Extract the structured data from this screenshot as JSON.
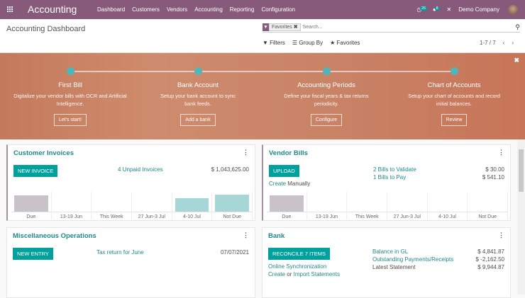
{
  "nav": {
    "brand": "Accounting",
    "menu": [
      "Dashboard",
      "Customers",
      "Vendors",
      "Accounting",
      "Reporting",
      "Configuration"
    ],
    "activity_count": "26",
    "message_count": "8",
    "company": "Demo Company"
  },
  "control": {
    "title": "Accounting Dashboard",
    "facet": "Favorites",
    "search_placeholder": "Search...",
    "filters": "Filters",
    "group_by": "Group By",
    "favorites": "Favorites",
    "pager": "1-7 / 7"
  },
  "banner": {
    "steps": [
      {
        "title": "First Bill",
        "desc": "Digitalize your vendor bills with OCR and Artificial Intelligence.",
        "button": "Let's start!"
      },
      {
        "title": "Bank Account",
        "desc": "Setup your bank account to sync bank feeds.",
        "button": "Add a bank"
      },
      {
        "title": "Accounting Periods",
        "desc": "Define your fiscal years & tax returns periodicity.",
        "button": "Configure"
      },
      {
        "title": "Chart of Accounts",
        "desc": "Setup your chart of accounts and record initial balances.",
        "button": "Review"
      }
    ]
  },
  "customer_invoices": {
    "title": "Customer Invoices",
    "button": "NEW INVOICE",
    "unpaid_link": "4 Unpaid Invoices",
    "unpaid_amount": "$ 1,043,625.00",
    "chart": {
      "categories": [
        "Due",
        "13-19 Jun",
        "This Week",
        "27 Jun-3 Jul",
        "4-10 Jul",
        "Not Due"
      ],
      "values": [
        0.95,
        0,
        0,
        0,
        0.8,
        1
      ],
      "colors": [
        "#c9c3c9",
        "#a6d7d6",
        "#a6d7d6",
        "#a6d7d6",
        "#a6d7d6",
        "#a6d7d6"
      ]
    }
  },
  "vendor_bills": {
    "title": "Vendor Bills",
    "button": "UPLOAD",
    "create": "Create",
    "manually": "Manually",
    "validate_link": "2 Bills to Validate",
    "validate_amount": "$ 30.00",
    "pay_link": "1 Bills to Pay",
    "pay_amount": "$ 541.10",
    "chart": {
      "categories": [
        "Due",
        "13-19 Jun",
        "This Week",
        "27 Jun-3 Jul",
        "4-10 Jul",
        "Not Due"
      ],
      "values": [
        0.95,
        0,
        0,
        0,
        0,
        0
      ],
      "colors": [
        "#c9c3c9",
        "#a6d7d6",
        "#a6d7d6",
        "#a6d7d6",
        "#a6d7d6",
        "#a6d7d6"
      ]
    }
  },
  "misc": {
    "title": "Miscellaneous Operations",
    "button": "NEW ENTRY",
    "tax_link": "Tax return for June",
    "tax_date": "07/07/2021"
  },
  "bank": {
    "title": "Bank",
    "button": "RECONCILE 7 ITEMS",
    "online_sync": "Online Synchronization",
    "create": "Create",
    "or": "or",
    "import": "Import Statements",
    "rows": [
      {
        "label": "Balance in GL",
        "amount": "$ 4,841.87",
        "link": true
      },
      {
        "label": "Outstanding Payments/Receipts",
        "amount": "$ -2,162.50",
        "link": true
      },
      {
        "label": "Latest Statement",
        "amount": "$ 9,944.87",
        "link": false
      }
    ]
  },
  "colors": {
    "brand": "#875A7B",
    "accent": "#00a09d"
  }
}
